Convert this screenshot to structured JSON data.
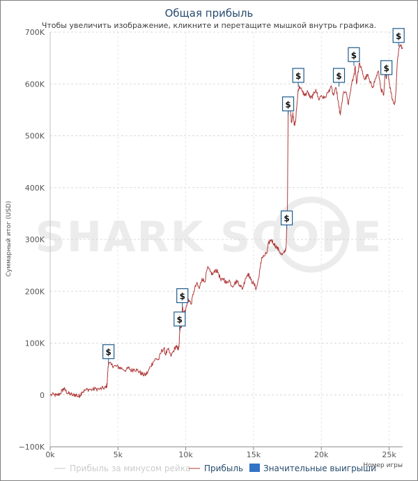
{
  "chart_data": {
    "type": "line",
    "title": "Общая прибыль",
    "subtitle": "Чтобы увеличить изображение, кликните и перетащите мышкой внутрь графика.",
    "ylabel": "Суммарный итог (USD)",
    "xlabel": "Номер игры",
    "xlim": [
      0,
      26000
    ],
    "ylim": [
      -100000,
      700000
    ],
    "xticks": [
      {
        "value": 0,
        "label": "0k"
      },
      {
        "value": 5000,
        "label": "5k"
      },
      {
        "value": 10000,
        "label": "10k"
      },
      {
        "value": 15000,
        "label": "15k"
      },
      {
        "value": 20000,
        "label": "20k"
      },
      {
        "value": 25000,
        "label": "25k"
      }
    ],
    "yticks": [
      {
        "value": -100000,
        "label": "−100K"
      },
      {
        "value": 0,
        "label": "0"
      },
      {
        "value": 100000,
        "label": "100K"
      },
      {
        "value": 200000,
        "label": "200K"
      },
      {
        "value": 300000,
        "label": "300K"
      },
      {
        "value": 400000,
        "label": "400K"
      },
      {
        "value": 500000,
        "label": "500K"
      },
      {
        "value": 600000,
        "label": "600K"
      },
      {
        "value": 700000,
        "label": "700K"
      }
    ],
    "grid": true,
    "colors": {
      "profit": "#b03a3a",
      "rake": "#c8c8c8",
      "wins": "#3273c6",
      "flag_border": "#1c5b8c"
    },
    "series": [
      {
        "name": "Прибыль",
        "points": [
          [
            0,
            0
          ],
          [
            300,
            200
          ],
          [
            500,
            -1000
          ],
          [
            750,
            3000
          ],
          [
            900,
            9000
          ],
          [
            1000,
            12000
          ],
          [
            1150,
            8000
          ],
          [
            1300,
            3000
          ],
          [
            1500,
            2000
          ],
          [
            1700,
            -1000
          ],
          [
            1900,
            1000
          ],
          [
            2050,
            -3000
          ],
          [
            2200,
            -1000
          ],
          [
            2350,
            6000
          ],
          [
            2600,
            9000
          ],
          [
            2850,
            11000
          ],
          [
            3100,
            10000
          ],
          [
            3350,
            12000
          ],
          [
            3650,
            11000
          ],
          [
            3900,
            13000
          ],
          [
            4100,
            14000
          ],
          [
            4200,
            20000
          ],
          [
            4250,
            45000
          ],
          [
            4300,
            62000
          ],
          [
            4500,
            58000
          ],
          [
            4700,
            56000
          ],
          [
            4900,
            55000
          ],
          [
            5100,
            53000
          ],
          [
            5300,
            51000
          ],
          [
            5600,
            48000
          ],
          [
            5800,
            52000
          ],
          [
            6000,
            47000
          ],
          [
            6200,
            50000
          ],
          [
            6400,
            48000
          ],
          [
            6600,
            44000
          ],
          [
            6800,
            40000
          ],
          [
            7000,
            38000
          ],
          [
            7200,
            44000
          ],
          [
            7400,
            55000
          ],
          [
            7600,
            64000
          ],
          [
            7800,
            70000
          ],
          [
            8000,
            68000
          ],
          [
            8200,
            84000
          ],
          [
            8400,
            90000
          ],
          [
            8500,
            78000
          ],
          [
            8700,
            88000
          ],
          [
            8900,
            75000
          ],
          [
            9100,
            85000
          ],
          [
            9300,
            95000
          ],
          [
            9400,
            88000
          ],
          [
            9500,
            92000
          ],
          [
            9550,
            120000
          ],
          [
            9600,
            130000
          ],
          [
            9700,
            135000
          ],
          [
            9750,
            170000
          ],
          [
            9850,
            158000
          ],
          [
            10000,
            165000
          ],
          [
            10200,
            185000
          ],
          [
            10400,
            175000
          ],
          [
            10600,
            200000
          ],
          [
            10800,
            215000
          ],
          [
            11000,
            205000
          ],
          [
            11200,
            225000
          ],
          [
            11400,
            218000
          ],
          [
            11600,
            245000
          ],
          [
            11800,
            238000
          ],
          [
            12000,
            232000
          ],
          [
            12200,
            242000
          ],
          [
            12400,
            236000
          ],
          [
            12600,
            220000
          ],
          [
            12800,
            225000
          ],
          [
            13000,
            215000
          ],
          [
            13200,
            222000
          ],
          [
            13400,
            210000
          ],
          [
            13600,
            215000
          ],
          [
            13800,
            220000
          ],
          [
            14000,
            212000
          ],
          [
            14200,
            205000
          ],
          [
            14400,
            225000
          ],
          [
            14600,
            235000
          ],
          [
            14800,
            222000
          ],
          [
            15000,
            215000
          ],
          [
            15200,
            205000
          ],
          [
            15300,
            215000
          ],
          [
            15500,
            245000
          ],
          [
            15600,
            265000
          ],
          [
            15800,
            268000
          ],
          [
            16000,
            275000
          ],
          [
            16100,
            292000
          ],
          [
            16300,
            300000
          ],
          [
            16500,
            292000
          ],
          [
            16700,
            285000
          ],
          [
            16900,
            278000
          ],
          [
            17100,
            270000
          ],
          [
            17300,
            275000
          ],
          [
            17400,
            285000
          ],
          [
            17450,
            320000
          ],
          [
            17500,
            360000
          ],
          [
            17520,
            440000
          ],
          [
            17550,
            540000
          ],
          [
            17600,
            570000
          ],
          [
            17700,
            560000
          ],
          [
            17800,
            525000
          ],
          [
            17900,
            545000
          ],
          [
            18000,
            520000
          ],
          [
            18100,
            528000
          ],
          [
            18200,
            560000
          ],
          [
            18300,
            590000
          ],
          [
            18400,
            595000
          ],
          [
            18600,
            585000
          ],
          [
            18800,
            578000
          ],
          [
            19000,
            585000
          ],
          [
            19200,
            572000
          ],
          [
            19400,
            578000
          ],
          [
            19600,
            590000
          ],
          [
            19800,
            570000
          ],
          [
            20000,
            578000
          ],
          [
            20200,
            572000
          ],
          [
            20500,
            583000
          ],
          [
            20700,
            595000
          ],
          [
            20900,
            578000
          ],
          [
            21100,
            592000
          ],
          [
            21300,
            555000
          ],
          [
            21400,
            540000
          ],
          [
            21600,
            580000
          ],
          [
            21800,
            585000
          ],
          [
            22000,
            560000
          ],
          [
            22200,
            595000
          ],
          [
            22400,
            615000
          ],
          [
            22500,
            635000
          ],
          [
            22600,
            600000
          ],
          [
            22800,
            640000
          ],
          [
            23000,
            625000
          ],
          [
            23200,
            608000
          ],
          [
            23400,
            618000
          ],
          [
            23600,
            602000
          ],
          [
            23800,
            595000
          ],
          [
            24000,
            610000
          ],
          [
            24200,
            625000
          ],
          [
            24400,
            590000
          ],
          [
            24600,
            578000
          ],
          [
            24700,
            620000
          ],
          [
            24800,
            610000
          ],
          [
            24900,
            628000
          ],
          [
            25000,
            605000
          ],
          [
            25200,
            575000
          ],
          [
            25400,
            560000
          ],
          [
            25500,
            585000
          ],
          [
            25600,
            640000
          ],
          [
            25700,
            665000
          ],
          [
            25800,
            676000
          ],
          [
            26000,
            668000
          ]
        ]
      },
      {
        "name": "Прибыль за минусом рейка",
        "points": []
      }
    ],
    "big_wins": [
      {
        "x": 4300,
        "y": 62000,
        "label": "$"
      },
      {
        "x": 9550,
        "y": 125000,
        "label": "$"
      },
      {
        "x": 9750,
        "y": 170000,
        "label": "$"
      },
      {
        "x": 17450,
        "y": 320000,
        "label": "$"
      },
      {
        "x": 17550,
        "y": 540000,
        "label": "$"
      },
      {
        "x": 18300,
        "y": 595000,
        "label": "$"
      },
      {
        "x": 21300,
        "y": 595000,
        "label": "$"
      },
      {
        "x": 22400,
        "y": 635000,
        "label": "$"
      },
      {
        "x": 24800,
        "y": 610000,
        "label": "$"
      },
      {
        "x": 25700,
        "y": 672000,
        "label": "$"
      }
    ],
    "legend": [
      {
        "label": "Прибыль за минусом рейка",
        "kind": "line",
        "color": "#c8c8c8",
        "muted": true
      },
      {
        "label": "Прибыль",
        "kind": "line",
        "color": "#b03a3a",
        "muted": false
      },
      {
        "label": "Значительные выигрыши",
        "kind": "box",
        "color": "#3273c6",
        "muted": false
      }
    ],
    "watermark": "SHARK SCOPE"
  }
}
